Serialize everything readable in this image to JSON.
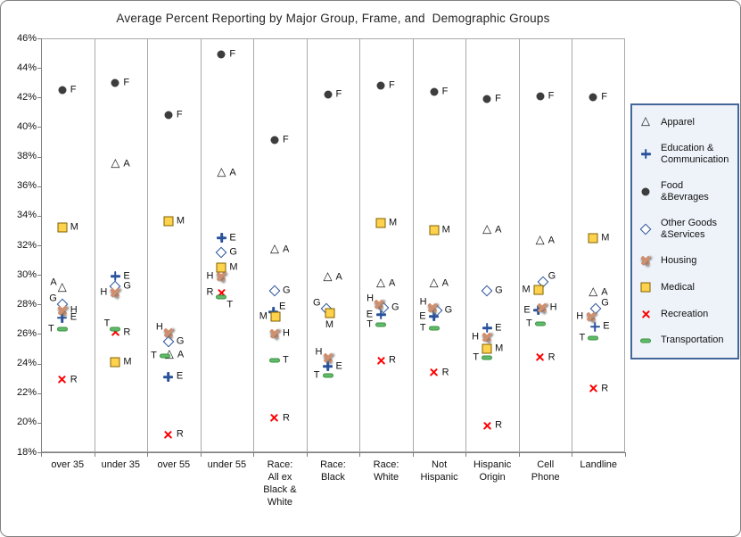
{
  "chart_data": {
    "type": "scatter",
    "title": "Average Percent Reporting by Major Group, Frame, and  Demographic Groups",
    "y_axis": {
      "min": 18,
      "max": 46,
      "step": 2,
      "tick_labels": [
        "46%",
        "44%",
        "42%",
        "40%",
        "38%",
        "36%",
        "34%",
        "32%",
        "30%",
        "28%",
        "26%",
        "24%",
        "22%",
        "20%",
        "18%"
      ]
    },
    "grid": "vertical-category-separators",
    "legend_position": "right",
    "style": {
      "legend_bg": "#eef3fa",
      "legend_border": "#44679b",
      "grid_color": "#a9a9a9",
      "axis_color": "#7f7f7f"
    },
    "categories": [
      {
        "name": "over 35",
        "lines": [
          "over 35"
        ]
      },
      {
        "name": "under 35",
        "lines": [
          "under 35"
        ]
      },
      {
        "name": "over 55",
        "lines": [
          "over 55"
        ]
      },
      {
        "name": "under 55",
        "lines": [
          "under 55"
        ]
      },
      {
        "name": "Race: All ex Black & White",
        "lines": [
          "Race:",
          "All ex",
          "Black &",
          "White"
        ]
      },
      {
        "name": "Race: Black",
        "lines": [
          "Race:",
          "Black"
        ]
      },
      {
        "name": "Race: White",
        "lines": [
          "Race:",
          "White"
        ]
      },
      {
        "name": "Not Hispanic",
        "lines": [
          "Not",
          "Hispanic"
        ]
      },
      {
        "name": "Hispanic Origin",
        "lines": [
          "Hispanic",
          "Origin"
        ]
      },
      {
        "name": "Cell Phone",
        "lines": [
          "Cell",
          "Phone"
        ]
      },
      {
        "name": "Landline",
        "lines": [
          "Landline"
        ]
      }
    ],
    "series": [
      {
        "letter": "A",
        "name": "Apparel",
        "legend_lines": [
          "Apparel"
        ],
        "marker": "triangle",
        "color": "#1a1a1a"
      },
      {
        "letter": "E",
        "name": "Education & Communication",
        "legend_lines": [
          "Education &",
          "Communication"
        ],
        "marker": "plus",
        "color": "#2a529c"
      },
      {
        "letter": "F",
        "name": "Food &Bevrages",
        "legend_lines": [
          "Food",
          "&Bevrages"
        ],
        "marker": "circle",
        "color": "#3d3d3d"
      },
      {
        "letter": "G",
        "name": "Other Goods &Services",
        "legend_lines": [
          "Other Goods",
          "&Services"
        ],
        "marker": "diamond",
        "color": "#2a529c"
      },
      {
        "letter": "H",
        "name": "Housing",
        "legend_lines": [
          "Housing"
        ],
        "marker": "xbold",
        "color": "#d08f6e"
      },
      {
        "letter": "M",
        "name": "Medical",
        "legend_lines": [
          "Medical"
        ],
        "marker": "square",
        "color": "#ffd24d",
        "color2": "#7f6000"
      },
      {
        "letter": "R",
        "name": "Recreation",
        "legend_lines": [
          "Recreation"
        ],
        "marker": "x",
        "color": "#ff0000"
      },
      {
        "letter": "T",
        "name": "Transportation",
        "legend_lines": [
          "Transportation"
        ],
        "marker": "dash",
        "color": "#5fbc6a",
        "color2": "#3f9142"
      }
    ],
    "points": [
      {
        "c": 0,
        "s": "F",
        "v": 42.5,
        "lp": "r"
      },
      {
        "c": 0,
        "s": "M",
        "v": 33.2,
        "lp": "r"
      },
      {
        "c": 0,
        "s": "A",
        "v": 29.1,
        "lp": "tl"
      },
      {
        "c": 0,
        "s": "G",
        "v": 28.0,
        "lp": "tl"
      },
      {
        "c": 0,
        "s": "H",
        "v": 27.6,
        "lp": "r"
      },
      {
        "c": 0,
        "s": "E",
        "v": 27.1,
        "lp": "r"
      },
      {
        "c": 0,
        "s": "T",
        "v": 26.3,
        "lp": "l"
      },
      {
        "c": 0,
        "s": "R",
        "v": 22.9,
        "lp": "r"
      },
      {
        "c": 1,
        "s": "F",
        "v": 43.0,
        "lp": "r"
      },
      {
        "c": 1,
        "s": "A",
        "v": 37.5,
        "lp": "r"
      },
      {
        "c": 1,
        "s": "E",
        "v": 29.9,
        "lp": "r"
      },
      {
        "c": 1,
        "s": "G",
        "v": 29.2,
        "lp": "r"
      },
      {
        "c": 1,
        "s": "H",
        "v": 28.8,
        "lp": "l"
      },
      {
        "c": 1,
        "s": "T",
        "v": 26.3,
        "lp": "tl"
      },
      {
        "c": 1,
        "s": "R",
        "v": 26.1,
        "lp": "r"
      },
      {
        "c": 1,
        "s": "M",
        "v": 24.1,
        "lp": "r"
      },
      {
        "c": 2,
        "s": "F",
        "v": 40.8,
        "lp": "r"
      },
      {
        "c": 2,
        "s": "M",
        "v": 33.6,
        "lp": "r"
      },
      {
        "c": 2,
        "s": "H",
        "v": 26.1,
        "lp": "tl"
      },
      {
        "c": 2,
        "s": "G",
        "v": 25.5,
        "lp": "r"
      },
      {
        "c": 2,
        "s": "A",
        "v": 24.6,
        "lp": "r",
        "dx": -5
      },
      {
        "c": 2,
        "s": "T",
        "v": 24.5,
        "lp": "l",
        "dx": -10
      },
      {
        "c": 2,
        "s": "E",
        "v": 23.1,
        "lp": "r"
      },
      {
        "c": 2,
        "s": "R",
        "v": 19.2,
        "lp": "r"
      },
      {
        "c": 3,
        "s": "F",
        "v": 44.9,
        "lp": "r"
      },
      {
        "c": 3,
        "s": "A",
        "v": 36.9,
        "lp": "r"
      },
      {
        "c": 3,
        "s": "E",
        "v": 32.5,
        "lp": "r"
      },
      {
        "c": 3,
        "s": "G",
        "v": 31.5,
        "lp": "r"
      },
      {
        "c": 3,
        "s": "M",
        "v": 30.5,
        "lp": "r"
      },
      {
        "c": 3,
        "s": "H",
        "v": 29.9,
        "lp": "l"
      },
      {
        "c": 3,
        "s": "R",
        "v": 28.8,
        "lp": "l"
      },
      {
        "c": 3,
        "s": "T",
        "v": 28.5,
        "lp": "br"
      },
      {
        "c": 4,
        "s": "F",
        "v": 39.1,
        "lp": "r"
      },
      {
        "c": 4,
        "s": "A",
        "v": 31.7,
        "lp": "r"
      },
      {
        "c": 4,
        "s": "G",
        "v": 28.9,
        "lp": "r"
      },
      {
        "c": 4,
        "s": "E",
        "v": 27.5,
        "lp": "tr",
        "dx": -7
      },
      {
        "c": 4,
        "s": "M",
        "v": 27.2,
        "lp": "l",
        "dx": -5
      },
      {
        "c": 4,
        "s": "H",
        "v": 26.0,
        "lp": "r"
      },
      {
        "c": 4,
        "s": "T",
        "v": 24.2,
        "lp": "r"
      },
      {
        "c": 4,
        "s": "R",
        "v": 20.3,
        "lp": "r"
      },
      {
        "c": 5,
        "s": "F",
        "v": 42.2,
        "lp": "r"
      },
      {
        "c": 5,
        "s": "A",
        "v": 29.8,
        "lp": "r"
      },
      {
        "c": 5,
        "s": "G",
        "v": 27.7,
        "lp": "tl",
        "dx": -8
      },
      {
        "c": 5,
        "s": "M",
        "v": 27.4,
        "lp": "b",
        "dx": -4
      },
      {
        "c": 5,
        "s": "H",
        "v": 24.4,
        "lp": "tl"
      },
      {
        "c": 5,
        "s": "E",
        "v": 23.8,
        "lp": "r"
      },
      {
        "c": 5,
        "s": "T",
        "v": 23.2,
        "lp": "l"
      },
      {
        "c": 6,
        "s": "F",
        "v": 42.8,
        "lp": "r"
      },
      {
        "c": 6,
        "s": "M",
        "v": 33.5,
        "lp": "r"
      },
      {
        "c": 6,
        "s": "A",
        "v": 29.4,
        "lp": "r"
      },
      {
        "c": 6,
        "s": "H",
        "v": 28.0,
        "lp": "tl",
        "dx": -8
      },
      {
        "c": 6,
        "s": "G",
        "v": 27.8,
        "lp": "r",
        "dx": -3
      },
      {
        "c": 6,
        "s": "E",
        "v": 27.3,
        "lp": "l"
      },
      {
        "c": 6,
        "s": "T",
        "v": 26.6,
        "lp": "l"
      },
      {
        "c": 6,
        "s": "R",
        "v": 24.2,
        "lp": "r"
      },
      {
        "c": 7,
        "s": "F",
        "v": 42.4,
        "lp": "r"
      },
      {
        "c": 7,
        "s": "M",
        "v": 33.0,
        "lp": "r"
      },
      {
        "c": 7,
        "s": "A",
        "v": 29.4,
        "lp": "r"
      },
      {
        "c": 7,
        "s": "H",
        "v": 27.8,
        "lp": "tl",
        "dx": -8
      },
      {
        "c": 7,
        "s": "G",
        "v": 27.6,
        "lp": "r",
        "dx": -3
      },
      {
        "c": 7,
        "s": "E",
        "v": 27.2,
        "lp": "l"
      },
      {
        "c": 7,
        "s": "T",
        "v": 26.4,
        "lp": "l"
      },
      {
        "c": 7,
        "s": "R",
        "v": 23.4,
        "lp": "r"
      },
      {
        "c": 8,
        "s": "F",
        "v": 41.9,
        "lp": "r"
      },
      {
        "c": 8,
        "s": "A",
        "v": 33.0,
        "lp": "r"
      },
      {
        "c": 8,
        "s": "G",
        "v": 28.9,
        "lp": "r"
      },
      {
        "c": 8,
        "s": "E",
        "v": 26.4,
        "lp": "r"
      },
      {
        "c": 8,
        "s": "H",
        "v": 25.8,
        "lp": "l"
      },
      {
        "c": 8,
        "s": "M",
        "v": 25.0,
        "lp": "r"
      },
      {
        "c": 8,
        "s": "T",
        "v": 24.4,
        "lp": "l"
      },
      {
        "c": 8,
        "s": "R",
        "v": 19.8,
        "lp": "r"
      },
      {
        "c": 9,
        "s": "F",
        "v": 42.1,
        "lp": "r"
      },
      {
        "c": 9,
        "s": "A",
        "v": 32.3,
        "lp": "r"
      },
      {
        "c": 9,
        "s": "G",
        "v": 29.5,
        "lp": "tr",
        "dx": -3
      },
      {
        "c": 9,
        "s": "M",
        "v": 29.0,
        "lp": "l",
        "dx": -8
      },
      {
        "c": 9,
        "s": "H",
        "v": 27.8,
        "lp": "r",
        "dx": -4
      },
      {
        "c": 9,
        "s": "E",
        "v": 27.6,
        "lp": "l",
        "dx": -8
      },
      {
        "c": 9,
        "s": "T",
        "v": 26.7,
        "lp": "l"
      },
      {
        "c": 9,
        "s": "R",
        "v": 24.4,
        "lp": "r"
      },
      {
        "c": 10,
        "s": "F",
        "v": 42.0,
        "lp": "r"
      },
      {
        "c": 10,
        "s": "M",
        "v": 32.5,
        "lp": "r"
      },
      {
        "c": 10,
        "s": "A",
        "v": 28.8,
        "lp": "r"
      },
      {
        "c": 10,
        "s": "G",
        "v": 27.7,
        "lp": "tr",
        "dx": -3
      },
      {
        "c": 10,
        "s": "H",
        "v": 27.2,
        "lp": "l",
        "dx": -8
      },
      {
        "c": 10,
        "s": "E",
        "v": 26.5,
        "lp": "r",
        "dx": -4
      },
      {
        "c": 10,
        "s": "T",
        "v": 25.7,
        "lp": "l"
      },
      {
        "c": 10,
        "s": "R",
        "v": 22.3,
        "lp": "r"
      }
    ]
  }
}
